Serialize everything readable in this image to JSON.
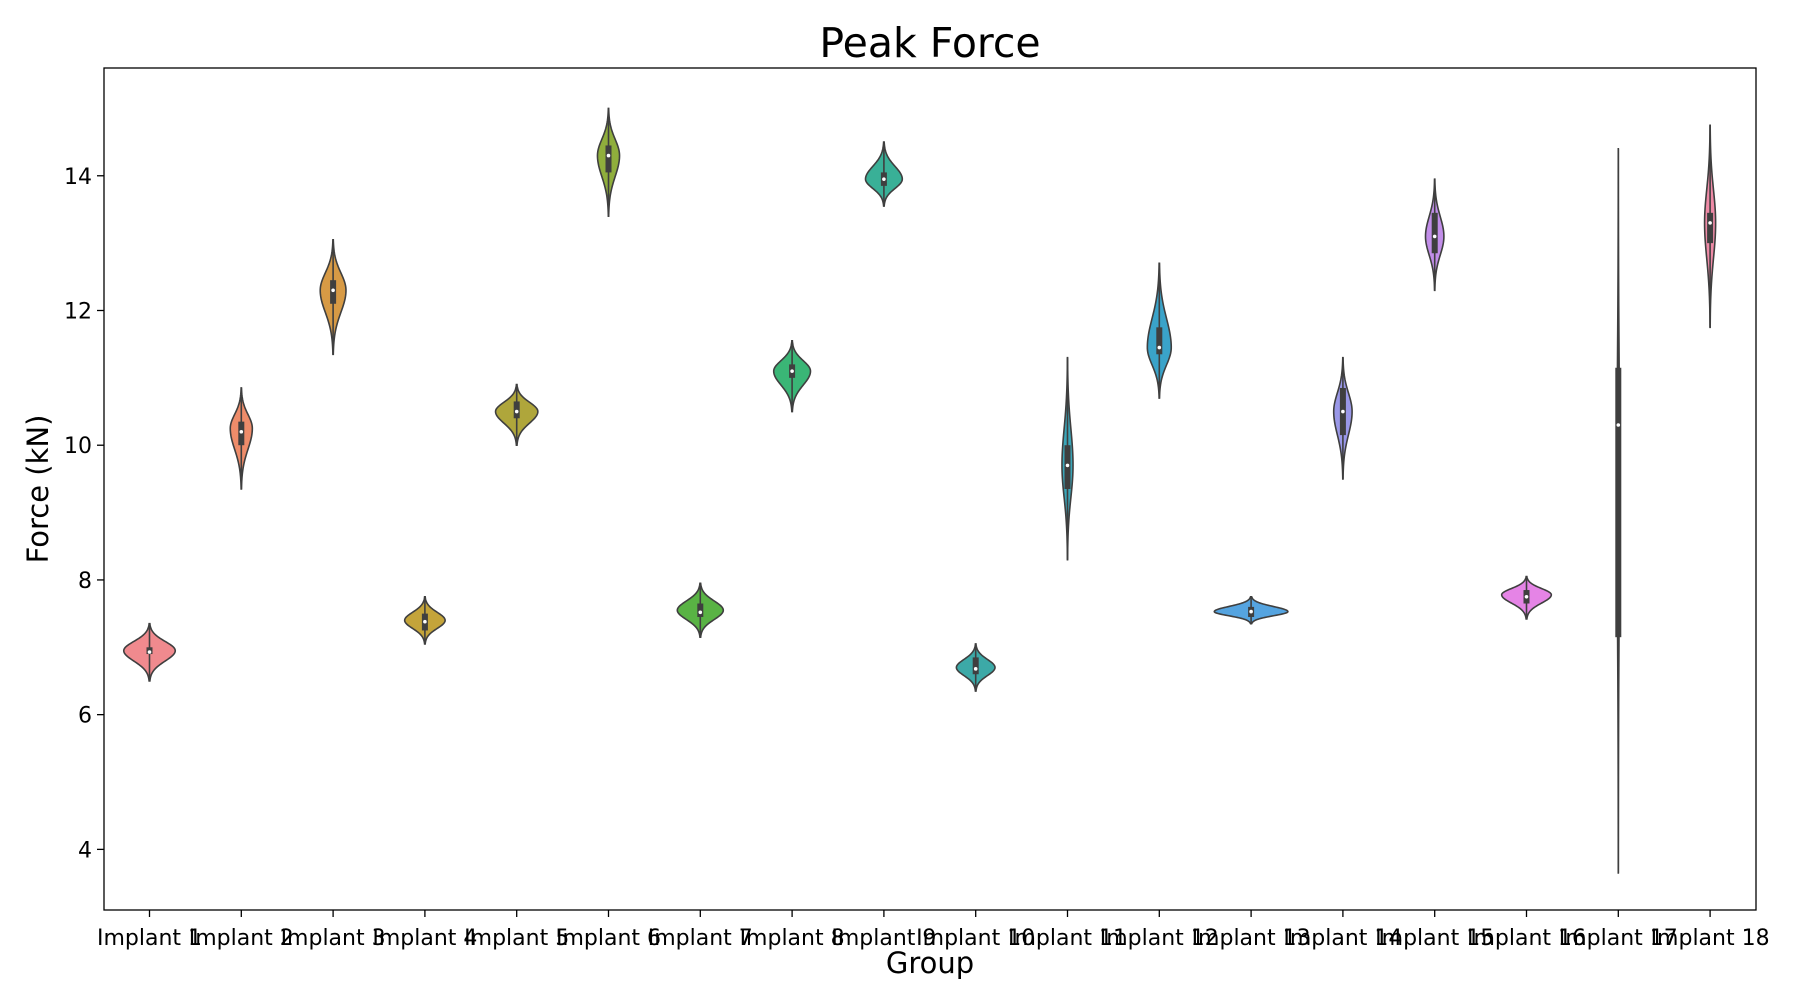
{
  "chart_data": {
    "type": "violin",
    "title": "Peak Force",
    "xlabel": "Group",
    "ylabel": "Force (kN)",
    "ylim": [
      3.1,
      15.6
    ],
    "yticks": [
      4,
      6,
      8,
      10,
      12,
      14
    ],
    "grid": false,
    "legend": "none",
    "categories": [
      "Implant 1",
      "Implant 2",
      "Implant 3",
      "Implant 4",
      "Implant 5",
      "Implant 6",
      "Implant 7",
      "Implant 8",
      "Implant 9",
      "Implant 10",
      "Implant 11",
      "Implant 12",
      "Implant 13",
      "Implant 14",
      "Implant 15",
      "Implant 16",
      "Implant 17",
      "Implant 18"
    ],
    "violins": [
      {
        "min": 6.5,
        "max": 7.35,
        "center": 6.95,
        "q1": 6.9,
        "q3": 7.0,
        "median": 6.93,
        "halfwidth": 0.28,
        "color": "#f08a8e"
      },
      {
        "min": 9.35,
        "max": 10.85,
        "center": 10.25,
        "q1": 10.0,
        "q3": 10.35,
        "median": 10.2,
        "halfwidth": 0.12,
        "color": "#ee8c6a"
      },
      {
        "min": 11.35,
        "max": 13.05,
        "center": 12.3,
        "q1": 12.1,
        "q3": 12.45,
        "median": 12.3,
        "halfwidth": 0.14,
        "color": "#d79a45"
      },
      {
        "min": 7.05,
        "max": 7.75,
        "center": 7.4,
        "q1": 7.25,
        "q3": 7.5,
        "median": 7.38,
        "halfwidth": 0.22,
        "color": "#c4a43a"
      },
      {
        "min": 10.0,
        "max": 10.9,
        "center": 10.5,
        "q1": 10.4,
        "q3": 10.65,
        "median": 10.5,
        "halfwidth": 0.23,
        "color": "#afa63b"
      },
      {
        "min": 13.4,
        "max": 15.0,
        "center": 14.3,
        "q1": 14.05,
        "q3": 14.45,
        "median": 14.3,
        "halfwidth": 0.12,
        "color": "#8fae3c"
      },
      {
        "min": 7.15,
        "max": 7.95,
        "center": 7.55,
        "q1": 7.45,
        "q3": 7.65,
        "median": 7.52,
        "halfwidth": 0.25,
        "color": "#59b344"
      },
      {
        "min": 10.5,
        "max": 11.55,
        "center": 11.1,
        "q1": 11.0,
        "q3": 11.2,
        "median": 11.1,
        "halfwidth": 0.2,
        "color": "#3ab676"
      },
      {
        "min": 13.55,
        "max": 14.5,
        "center": 13.95,
        "q1": 13.85,
        "q3": 14.05,
        "median": 13.95,
        "halfwidth": 0.2,
        "color": "#39b097"
      },
      {
        "min": 6.35,
        "max": 7.05,
        "center": 6.7,
        "q1": 6.6,
        "q3": 6.85,
        "median": 6.68,
        "halfwidth": 0.21,
        "color": "#3ca9a7"
      },
      {
        "min": 8.3,
        "max": 11.3,
        "center": 9.7,
        "q1": 9.35,
        "q3": 10.0,
        "median": 9.7,
        "halfwidth": 0.06,
        "color": "#3ba6b8"
      },
      {
        "min": 10.7,
        "max": 12.7,
        "center": 11.45,
        "q1": 11.35,
        "q3": 11.75,
        "median": 11.45,
        "halfwidth": 0.13,
        "color": "#3aa3c9"
      },
      {
        "min": 7.35,
        "max": 7.75,
        "center": 7.53,
        "q1": 7.45,
        "q3": 7.6,
        "median": 7.53,
        "halfwidth": 0.4,
        "color": "#55a4e0"
      },
      {
        "min": 9.5,
        "max": 11.3,
        "center": 10.5,
        "q1": 10.15,
        "q3": 10.85,
        "median": 10.5,
        "halfwidth": 0.1,
        "color": "#9a98e8"
      },
      {
        "min": 12.3,
        "max": 13.95,
        "center": 13.1,
        "q1": 12.85,
        "q3": 13.45,
        "median": 13.1,
        "halfwidth": 0.1,
        "color": "#c28ee9"
      },
      {
        "min": 7.42,
        "max": 8.05,
        "center": 7.78,
        "q1": 7.65,
        "q3": 7.85,
        "median": 7.75,
        "halfwidth": 0.27,
        "color": "#e584e6"
      },
      {
        "min": 3.65,
        "max": 14.4,
        "center": 9.5,
        "q1": 7.15,
        "q3": 11.15,
        "median": 10.3,
        "halfwidth": 0.015,
        "color": "#ed86c4"
      },
      {
        "min": 11.75,
        "max": 14.75,
        "center": 13.3,
        "q1": 13.0,
        "q3": 13.45,
        "median": 13.3,
        "halfwidth": 0.06,
        "color": "#ee8aa6"
      }
    ]
  }
}
